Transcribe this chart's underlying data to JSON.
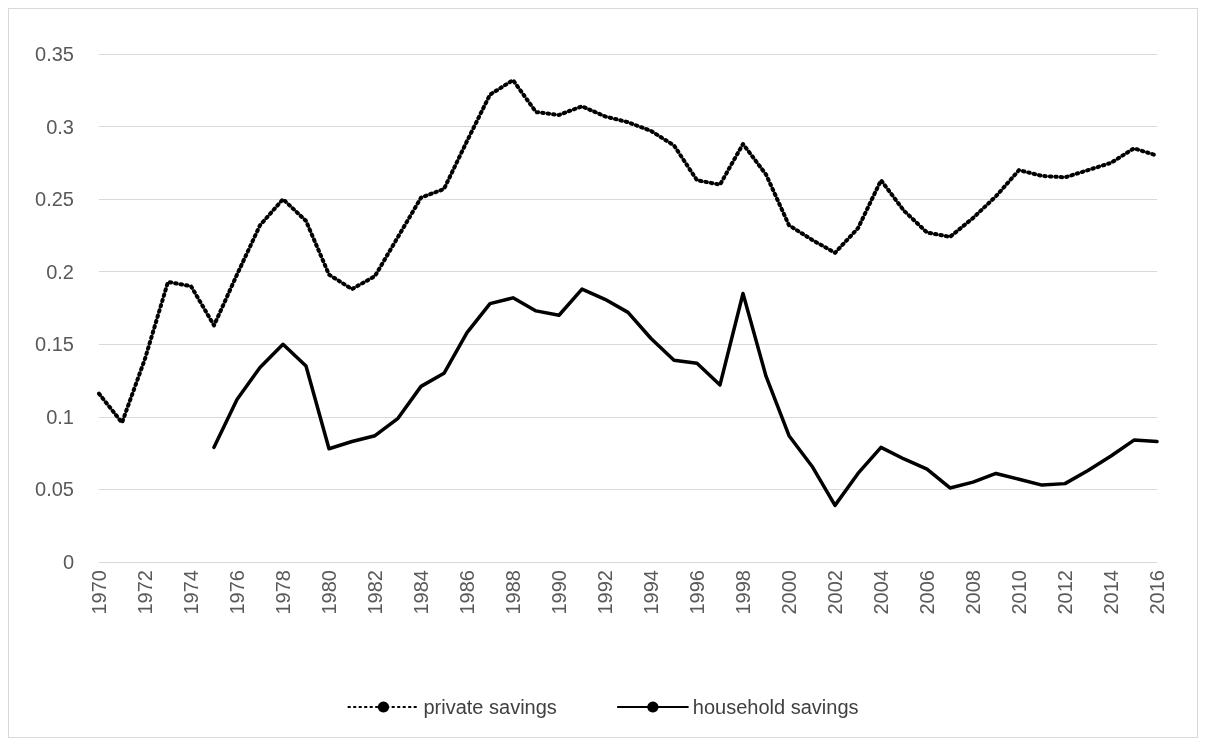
{
  "chart_data": {
    "type": "line",
    "categories": [
      "1970",
      null,
      "1972",
      null,
      "1974",
      null,
      "1976",
      null,
      "1978",
      null,
      "1980",
      null,
      "1982",
      null,
      "1984",
      null,
      "1986",
      null,
      "1988",
      null,
      "1990",
      null,
      "1992",
      null,
      "1994",
      null,
      "1996",
      null,
      "1998",
      null,
      "2000",
      null,
      "2002",
      null,
      "2004",
      null,
      "2006",
      null,
      "2008",
      null,
      "2010",
      null,
      "2012",
      null,
      "2014",
      null,
      "2016"
    ],
    "series": [
      {
        "name": "private savings",
        "color": "#000000",
        "line_style": "dotted",
        "values": [
          0.116,
          0.096,
          0.14,
          0.193,
          0.19,
          0.163,
          0.198,
          0.232,
          0.25,
          0.235,
          0.198,
          0.188,
          0.197,
          0.224,
          0.251,
          0.257,
          0.29,
          0.322,
          0.332,
          0.31,
          0.308,
          0.314,
          0.307,
          0.303,
          0.297,
          0.287,
          0.263,
          0.26,
          0.288,
          0.267,
          0.232,
          0.222,
          0.213,
          0.23,
          0.263,
          0.242,
          0.227,
          0.224,
          0.237,
          0.252,
          0.27,
          0.266,
          0.265,
          0.27,
          0.275,
          0.285,
          0.28
        ]
      },
      {
        "name": "household savings",
        "color": "#000000",
        "line_style": "solid",
        "values": [
          null,
          null,
          null,
          null,
          null,
          0.079,
          0.112,
          0.134,
          0.15,
          0.135,
          0.078,
          0.083,
          0.087,
          0.099,
          0.121,
          0.13,
          0.158,
          0.178,
          0.182,
          0.173,
          0.17,
          0.188,
          0.181,
          0.172,
          0.154,
          0.139,
          0.137,
          0.122,
          0.185,
          0.128,
          0.087,
          0.066,
          0.039,
          0.061,
          0.079,
          0.071,
          0.064,
          0.051,
          0.055,
          0.061,
          0.057,
          0.053,
          0.054,
          0.063,
          0.073,
          0.084,
          0.083
        ]
      }
    ],
    "ylim": [
      0,
      0.35
    ],
    "yticks": [
      0,
      0.05,
      0.1,
      0.15,
      0.2,
      0.25,
      0.3,
      0.35
    ],
    "grid": "y",
    "legend": "bottom",
    "marker": "none"
  }
}
